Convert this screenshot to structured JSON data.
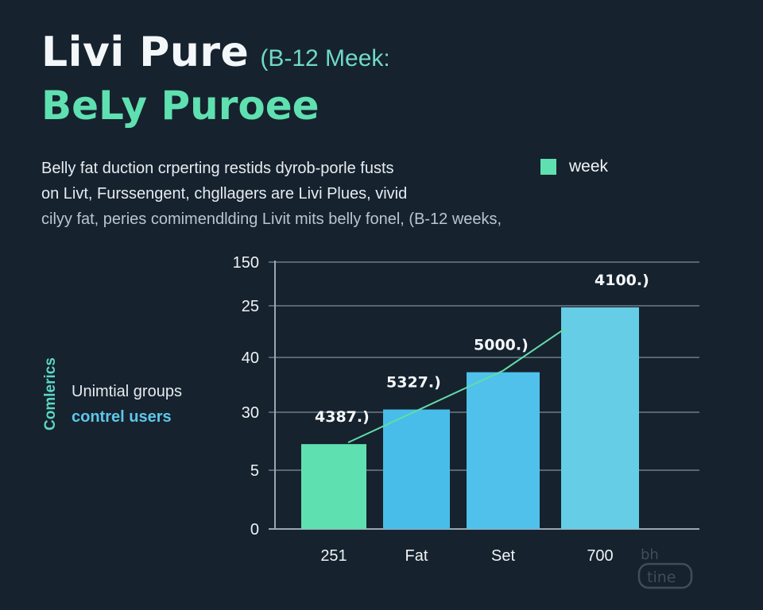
{
  "header": {
    "title": "Livi Pure",
    "subtitle": "(B-12 Meek:",
    "title_line2": "BeLy Puroee"
  },
  "description": {
    "line1": "Belly fat duction crperting restids dyrob-porle fusts",
    "line2": "on Livt, Furssengent, chgllagers are Livi Plues, vivid",
    "line3": "cilyy fat, peries comimendlding Livit mits belly fonel, (B-12 weeks,"
  },
  "legend": {
    "label": "week",
    "color": "#5fe0b0"
  },
  "side": {
    "vertical_label": "Comlerics",
    "groups_label": "Unimtial groups",
    "control_label": "contrel users"
  },
  "watermark": {
    "text_top": "bh",
    "text_bottom": "tine"
  },
  "chart_data": {
    "type": "bar",
    "title": "",
    "xlabel": "",
    "ylabel": "",
    "y_tick_labels": [
      "0",
      "5",
      "30",
      "40",
      "25",
      "150"
    ],
    "y_tick_positions": [
      0,
      1,
      2,
      3,
      4,
      5
    ],
    "ylim": [
      0,
      5
    ],
    "grid": true,
    "categories": [
      "251",
      "Fat",
      "Set",
      "700"
    ],
    "values": [
      1.45,
      2.05,
      2.73,
      3.97
    ],
    "data_labels": [
      "4387.)",
      "5327.)",
      "5000.)",
      "4100.)"
    ],
    "colors": [
      "#5fe0b0",
      "#48bde9",
      "#4fc1ea",
      "#66cde6"
    ],
    "trend_line": true,
    "trend_color": "#61dca9"
  }
}
